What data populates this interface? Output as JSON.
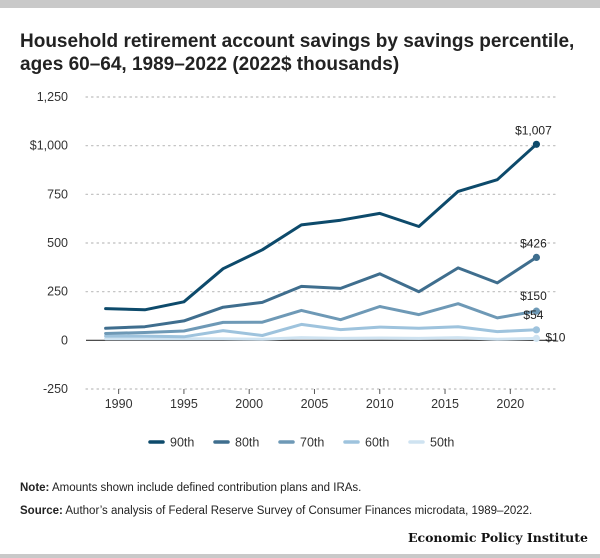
{
  "title": "Household retirement account savings by savings percentile, ages 60–64, 1989–2022 (2022$ thousands)",
  "note_label": "Note:",
  "note_text": "Amounts shown include defined contribution plans and IRAs.",
  "source_label": "Source:",
  "source_text": "Author’s analysis of Federal Reserve Survey of Consumer Finances microdata, 1989–2022.",
  "brand": "Economic Policy Institute",
  "chart_data": {
    "type": "line",
    "title": "Household retirement account savings by savings percentile, ages 60–64, 1989–2022 (2022$ thousands)",
    "x": [
      1989,
      1992,
      1995,
      1998,
      2001,
      2004,
      2007,
      2010,
      2013,
      2016,
      2019,
      2022
    ],
    "xticks": [
      1990,
      1995,
      2000,
      2005,
      2010,
      2015,
      2020
    ],
    "xlim": [
      1987.5,
      2023.5
    ],
    "ylim": [
      -250,
      1250
    ],
    "yticks": [
      -250,
      0,
      250,
      500,
      750,
      1000,
      1250
    ],
    "ytick_labels": [
      "-250",
      "0",
      "250",
      "500",
      "750",
      "$1,000",
      "1,250"
    ],
    "grid": true,
    "legend_position": "bottom",
    "series": [
      {
        "name": "90th",
        "color": "#0d4a6b",
        "values": [
          163,
          157,
          198,
          368,
          465,
          593,
          617,
          652,
          585,
          765,
          825,
          1007
        ],
        "end_label": "$1,007"
      },
      {
        "name": "80th",
        "color": "#3f6e8e",
        "values": [
          62,
          70,
          100,
          170,
          195,
          277,
          267,
          342,
          250,
          372,
          295,
          426
        ],
        "end_label": "$426"
      },
      {
        "name": "70th",
        "color": "#6e99b6",
        "values": [
          35,
          40,
          48,
          92,
          93,
          154,
          106,
          174,
          132,
          188,
          115,
          150
        ],
        "end_label": "$150"
      },
      {
        "name": "60th",
        "color": "#9ec3dd",
        "values": [
          22,
          22,
          18,
          50,
          25,
          82,
          55,
          68,
          62,
          70,
          45,
          54
        ],
        "end_label": "$54"
      },
      {
        "name": "50th",
        "color": "#cfe3f1",
        "values": [
          8,
          8,
          8,
          8,
          6,
          14,
          10,
          12,
          10,
          14,
          6,
          10
        ],
        "end_label": "$10"
      }
    ]
  }
}
